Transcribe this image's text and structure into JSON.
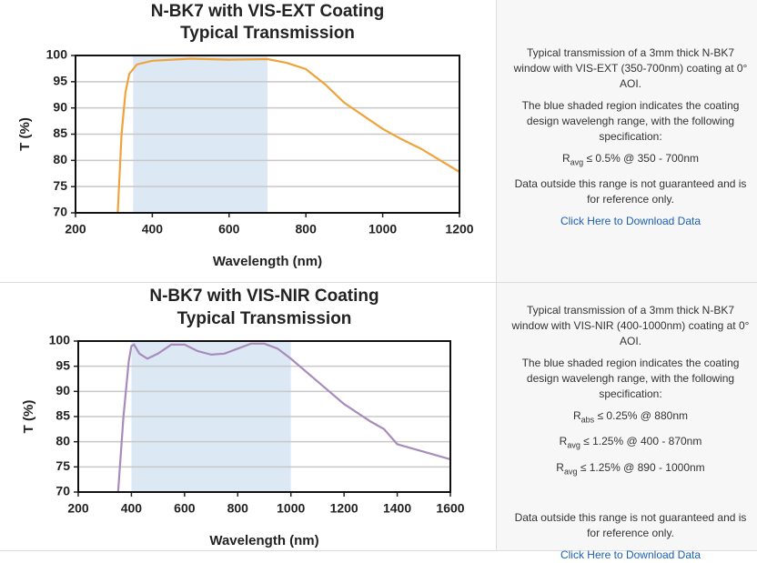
{
  "chart_data": [
    {
      "type": "line",
      "title": "N-BK7 with VIS-EXT Coating",
      "subtitle": "Typical Transmission",
      "x_label": "Wavelength (nm)",
      "y_label": "T (%)",
      "x": [
        310,
        320,
        330,
        340,
        360,
        400,
        500,
        600,
        700,
        750,
        800,
        850,
        900,
        950,
        1000,
        1050,
        1100,
        1150,
        1200
      ],
      "values": [
        70,
        85,
        93,
        96.5,
        98.3,
        99,
        99.4,
        99.2,
        99.3,
        98.6,
        97.4,
        94.5,
        91,
        88.5,
        86,
        84,
        82.2,
        80,
        77.8
      ],
      "color": "#f0a33a",
      "shaded_range": [
        350,
        700
      ],
      "shade_color": "#dce9f5",
      "xlim": [
        200,
        1200
      ],
      "xticks": [
        200,
        400,
        600,
        800,
        1000,
        1200
      ],
      "ylim": [
        70,
        100
      ],
      "yticks": [
        70,
        75,
        80,
        85,
        90,
        95,
        100
      ],
      "grid": true
    },
    {
      "type": "line",
      "title": "N-BK7 with VIS-NIR Coating",
      "subtitle": "Typical Transmission",
      "x_label": "Wavelength (nm)",
      "y_label": "T (%)",
      "x": [
        350,
        370,
        390,
        400,
        410,
        430,
        460,
        500,
        550,
        600,
        650,
        700,
        750,
        800,
        850,
        900,
        950,
        1000,
        1100,
        1200,
        1300,
        1350,
        1400,
        1500,
        1600
      ],
      "values": [
        70,
        85,
        96,
        99,
        99.3,
        97.5,
        96.5,
        97.5,
        99.3,
        99.3,
        98,
        97.3,
        97.5,
        98.5,
        99.5,
        99.5,
        98.5,
        96.5,
        92,
        87.5,
        84,
        82.5,
        79.5,
        78,
        76.5
      ],
      "color": "#a98bbb",
      "shaded_range": [
        400,
        1000
      ],
      "shade_color": "#dce9f5",
      "xlim": [
        200,
        1600
      ],
      "xticks": [
        200,
        400,
        600,
        800,
        1000,
        1200,
        1400,
        1600
      ],
      "ylim": [
        70,
        100
      ],
      "yticks": [
        70,
        75,
        80,
        85,
        90,
        95,
        100
      ],
      "grid": true
    }
  ],
  "panels": [
    {
      "description": "Typical transmission of a 3mm thick N-BK7 window with VIS-EXT (350-700nm) coating at 0° AOI.",
      "shading_note": "The blue shaded region indicates the coating design wavelengh range, with the following specification:",
      "specs": [
        {
          "symbol": "R",
          "subscript": "avg",
          "text": "≤ 0.5% @ 350 - 700nm"
        }
      ],
      "disclaimer": "Data outside this range is not guaranteed and is for reference only.",
      "link": "Click Here to Download Data"
    },
    {
      "description": "Typical transmission of a 3mm thick N-BK7 window with VIS-NIR (400-1000nm) coating at 0° AOI.",
      "shading_note": "The blue shaded region indicates the coating design wavelengh range, with the following specification:",
      "specs": [
        {
          "symbol": "R",
          "subscript": "abs",
          "text": "≤ 0.25% @ 880nm"
        },
        {
          "symbol": "R",
          "subscript": "avg",
          "text": "≤ 1.25% @ 400 - 870nm"
        },
        {
          "symbol": "R",
          "subscript": "avg",
          "text": "≤ 1.25% @ 890 - 1000nm"
        }
      ],
      "disclaimer": "Data outside this range is not guaranteed and is for reference only.",
      "link": "Click Here to Download Data"
    }
  ]
}
